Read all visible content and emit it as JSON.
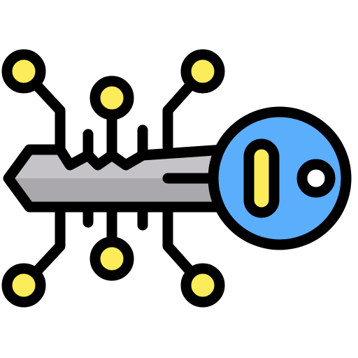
{
  "icon": {
    "name": "digital-key-icon",
    "colors": {
      "outline": "#000000",
      "blade_fill": "#c5c3c8",
      "blade_shadow": "#aaa8ad",
      "head_fill": "#5aaefc",
      "head_shadow": "#3d97f2",
      "slot_fill": "#fdec5a",
      "node_fill": "#fdec5a",
      "hole_fill": "#ffffff",
      "background": "#ffffff"
    }
  }
}
